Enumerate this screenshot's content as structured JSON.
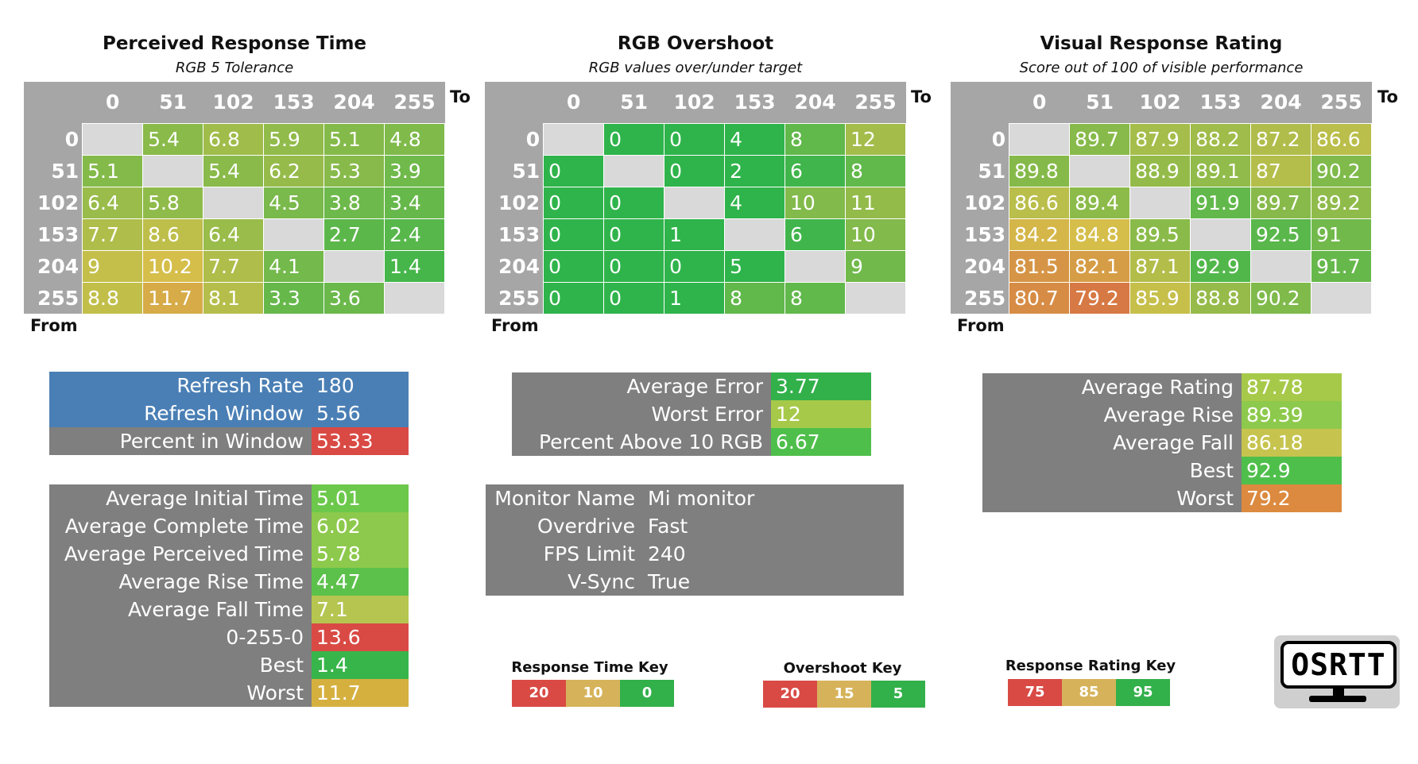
{
  "colors": {
    "grey": "#7f7f7f",
    "header_grey": "#a6a6a6",
    "diag": "#d9d9d9",
    "blue": "#4a7fb5",
    "red": "#d94a45",
    "tan": "#d6b35a",
    "green": "#32b04a"
  },
  "chart_data": [
    {
      "type": "heatmap",
      "title": "Perceived Response Time",
      "subtitle": "RGB 5 Tolerance",
      "xlabel": "To",
      "ylabel": "From",
      "x": [
        "0",
        "51",
        "102",
        "153",
        "204",
        "255"
      ],
      "y": [
        "0",
        "51",
        "102",
        "153",
        "204",
        "255"
      ],
      "values": [
        [
          null,
          5.4,
          6.8,
          5.9,
          5.1,
          4.8
        ],
        [
          5.1,
          null,
          5.4,
          6.2,
          5.3,
          3.9
        ],
        [
          6.4,
          5.8,
          null,
          4.5,
          3.8,
          3.4
        ],
        [
          7.7,
          8.6,
          6.4,
          null,
          2.7,
          2.4
        ],
        [
          9,
          10.2,
          7.7,
          4.1,
          null,
          1.4
        ],
        [
          8.8,
          11.7,
          8.1,
          3.3,
          3.6,
          null
        ]
      ],
      "color_scale": {
        "min": 0,
        "mid": 10,
        "max": 20,
        "invert": true
      }
    },
    {
      "type": "heatmap",
      "title": "RGB Overshoot",
      "subtitle": "RGB values over/under target",
      "xlabel": "To",
      "ylabel": "From",
      "x": [
        "0",
        "51",
        "102",
        "153",
        "204",
        "255"
      ],
      "y": [
        "0",
        "51",
        "102",
        "153",
        "204",
        "255"
      ],
      "values": [
        [
          null,
          0,
          0,
          4,
          8,
          12
        ],
        [
          0,
          null,
          0,
          2,
          6,
          8
        ],
        [
          0,
          0,
          null,
          4,
          10,
          11
        ],
        [
          0,
          0,
          1,
          null,
          6,
          10
        ],
        [
          0,
          0,
          0,
          5,
          null,
          9
        ],
        [
          0,
          0,
          1,
          8,
          8,
          null
        ]
      ],
      "color_scale": {
        "min": 5,
        "mid": 15,
        "max": 20,
        "invert": true
      }
    },
    {
      "type": "heatmap",
      "title": "Visual Response Rating",
      "subtitle": "Score out of 100 of visible performance",
      "xlabel": "To",
      "ylabel": "From",
      "x": [
        "0",
        "51",
        "102",
        "153",
        "204",
        "255"
      ],
      "y": [
        "0",
        "51",
        "102",
        "153",
        "204",
        "255"
      ],
      "values": [
        [
          null,
          89.7,
          87.9,
          88.2,
          87.2,
          86.6
        ],
        [
          89.8,
          null,
          88.9,
          89.1,
          87,
          90.2
        ],
        [
          86.6,
          89.4,
          null,
          91.9,
          89.7,
          89.2
        ],
        [
          84.2,
          84.8,
          89.5,
          null,
          92.5,
          91
        ],
        [
          81.5,
          82.1,
          87.1,
          92.9,
          null,
          91.7
        ],
        [
          80.7,
          79.2,
          85.9,
          88.8,
          90.2,
          null
        ]
      ],
      "color_scale": {
        "min": 75,
        "mid": 85,
        "max": 95,
        "invert": false
      }
    }
  ],
  "refresh": [
    {
      "label": "Refresh Rate",
      "value": "180"
    },
    {
      "label": "Refresh Window",
      "value": "5.56"
    },
    {
      "label": "Percent in Window",
      "value": "53.33"
    }
  ],
  "response_stats": [
    {
      "label": "Average Initial Time",
      "value": "5.01",
      "color": "#6cc84b"
    },
    {
      "label": "Average Complete Time",
      "value": "6.02",
      "color": "#8dc94c"
    },
    {
      "label": "Average Perceived Time",
      "value": "5.78",
      "color": "#8dc94c"
    },
    {
      "label": "Average Rise Time",
      "value": "4.47",
      "color": "#5cc14b"
    },
    {
      "label": "Average Fall Time",
      "value": "7.1",
      "color": "#b6c550"
    },
    {
      "label": "0-255-0",
      "value": "13.6",
      "color": "#d94a45"
    },
    {
      "label": "Best",
      "value": "1.4",
      "color": "#38b54a"
    },
    {
      "label": "Worst",
      "value": "11.7",
      "color": "#d6b03f"
    }
  ],
  "overshoot_stats": [
    {
      "label": "Average Error",
      "value": "3.77",
      "color": "#32b04a"
    },
    {
      "label": "Worst Error",
      "value": "12",
      "color": "#a7c94a"
    },
    {
      "label": "Percent Above 10 RGB",
      "value": "6.67",
      "color": "#4fbf4b"
    }
  ],
  "monitor_info": [
    {
      "label": "Monitor Name",
      "value": "Mi monitor"
    },
    {
      "label": "Overdrive",
      "value": "Fast"
    },
    {
      "label": "FPS Limit",
      "value": "240"
    },
    {
      "label": "V-Sync",
      "value": "True"
    }
  ],
  "rating_stats": [
    {
      "label": "Average Rating",
      "value": "87.78",
      "color": "#a7c94a"
    },
    {
      "label": "Average Rise",
      "value": "89.39",
      "color": "#8dc94c"
    },
    {
      "label": "Average Fall",
      "value": "86.18",
      "color": "#c6c44e"
    },
    {
      "label": "Best",
      "value": "92.9",
      "color": "#4fbf4b"
    },
    {
      "label": "Worst",
      "value": "79.2",
      "color": "#dc8a3f"
    }
  ],
  "keys": [
    {
      "title": "Response Time Key",
      "items": [
        {
          "label": "20",
          "color": "#d94a45"
        },
        {
          "label": "10",
          "color": "#d6b35a"
        },
        {
          "label": "0",
          "color": "#32b04a"
        }
      ]
    },
    {
      "title": "Overshoot Key",
      "items": [
        {
          "label": "20",
          "color": "#d94a45"
        },
        {
          "label": "15",
          "color": "#d6b35a"
        },
        {
          "label": "5",
          "color": "#32b04a"
        }
      ]
    },
    {
      "title": "Response Rating Key",
      "items": [
        {
          "label": "75",
          "color": "#d94a45"
        },
        {
          "label": "85",
          "color": "#d6b35a"
        },
        {
          "label": "95",
          "color": "#32b04a"
        }
      ]
    }
  ],
  "logo": {
    "text": "OSRTT"
  }
}
